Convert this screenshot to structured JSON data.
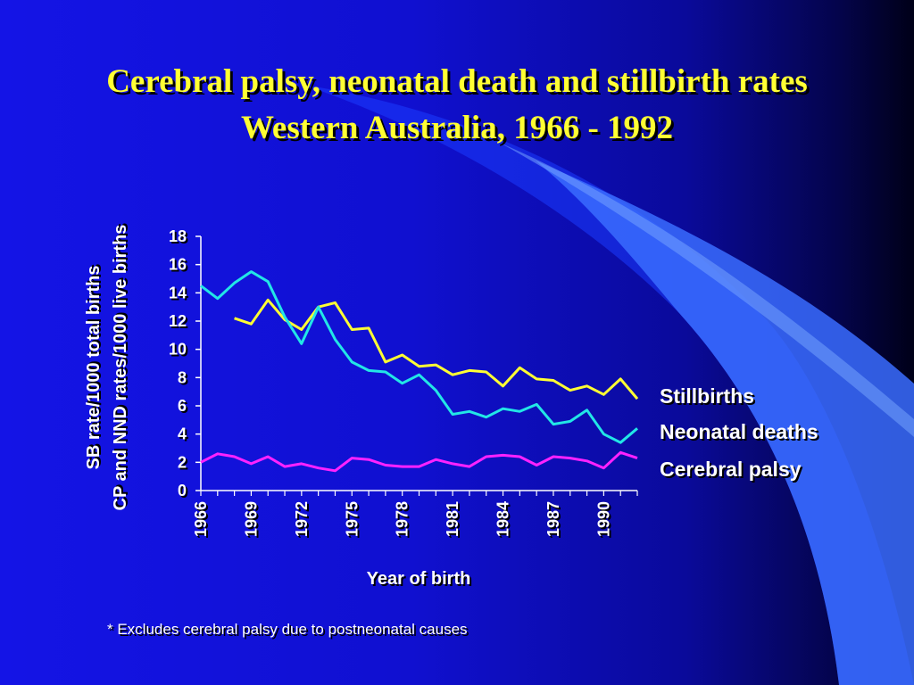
{
  "slide": {
    "title_line1": "Cerebral palsy, neonatal death and stillbirth rates",
    "title_line2": "Western Australia, 1966 - 1992",
    "footnote": "* Excludes cerebral palsy due to postneonatal causes"
  },
  "colors": {
    "stillbirths": "#ffff33",
    "neonatal_deaths": "#22e6e6",
    "cerebral_palsy": "#ff22ff",
    "axis": "#ffffff",
    "title": "#ffff33"
  },
  "chart_data": {
    "type": "line",
    "xlabel": "Year of birth",
    "ylabel_lines": [
      "SB rate/1000 total births",
      "CP and NND rates/1000 live births"
    ],
    "ylim": [
      0,
      18
    ],
    "yticks": [
      0,
      2,
      4,
      6,
      8,
      10,
      12,
      14,
      16,
      18
    ],
    "xlim": [
      1966,
      1992
    ],
    "xticks": [
      1966,
      1969,
      1972,
      1975,
      1978,
      1981,
      1984,
      1987,
      1990
    ],
    "grid": false,
    "legend_placement": "right, inline labels",
    "series": [
      {
        "name": "Stillbirths",
        "color_key": "stillbirths",
        "x": [
          1968,
          1969,
          1970,
          1971,
          1972,
          1973,
          1974,
          1975,
          1976,
          1977,
          1978,
          1979,
          1980,
          1981,
          1982,
          1983,
          1984,
          1985,
          1986,
          1987,
          1988,
          1989,
          1990,
          1991,
          1992
        ],
        "values": [
          12.2,
          11.8,
          13.5,
          12.1,
          11.4,
          13.0,
          13.3,
          11.4,
          11.5,
          9.1,
          9.6,
          8.8,
          8.9,
          8.2,
          8.5,
          8.4,
          7.4,
          8.7,
          7.9,
          7.8,
          7.1,
          7.4,
          6.8,
          7.9,
          6.5
        ]
      },
      {
        "name": "Neonatal deaths",
        "color_key": "neonatal_deaths",
        "x": [
          1966,
          1967,
          1968,
          1969,
          1970,
          1971,
          1972,
          1973,
          1974,
          1975,
          1976,
          1977,
          1978,
          1979,
          1980,
          1981,
          1982,
          1983,
          1984,
          1985,
          1986,
          1987,
          1988,
          1989,
          1990,
          1991,
          1992
        ],
        "values": [
          14.5,
          13.6,
          14.7,
          15.5,
          14.8,
          12.3,
          10.4,
          13.0,
          10.7,
          9.1,
          8.5,
          8.4,
          7.6,
          8.2,
          7.1,
          5.4,
          5.6,
          5.2,
          5.8,
          5.6,
          6.1,
          4.7,
          4.9,
          5.7,
          4.0,
          3.4,
          4.4
        ]
      },
      {
        "name": "Cerebral palsy",
        "color_key": "cerebral_palsy",
        "x": [
          1966,
          1967,
          1968,
          1969,
          1970,
          1971,
          1972,
          1973,
          1974,
          1975,
          1976,
          1977,
          1978,
          1979,
          1980,
          1981,
          1982,
          1983,
          1984,
          1985,
          1986,
          1987,
          1988,
          1989,
          1990,
          1991,
          1992
        ],
        "values": [
          2.0,
          2.6,
          2.4,
          1.9,
          2.4,
          1.7,
          1.9,
          1.6,
          1.4,
          2.3,
          2.2,
          1.8,
          1.7,
          1.7,
          2.2,
          1.9,
          1.7,
          2.4,
          2.5,
          2.4,
          1.8,
          2.4,
          2.3,
          2.1,
          1.6,
          2.7,
          2.3
        ]
      }
    ]
  }
}
